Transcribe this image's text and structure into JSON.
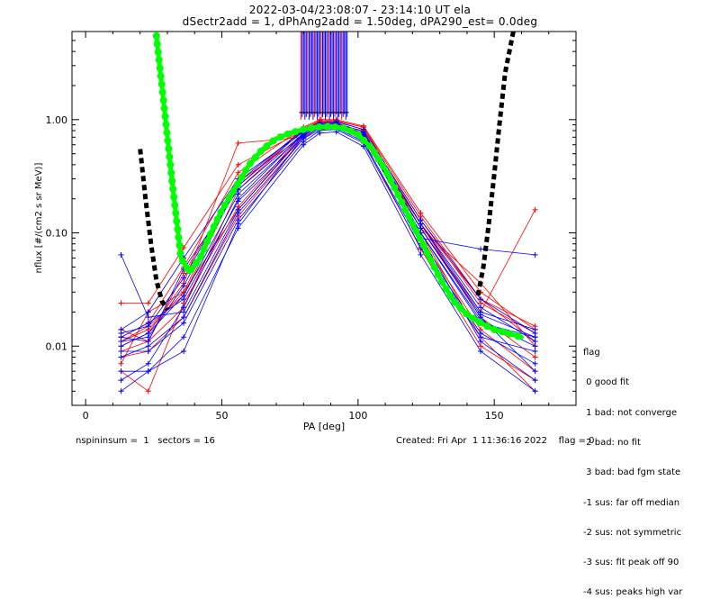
{
  "header": {
    "title": "2022-03-04/23:08:07 - 23:14:10 UT ela",
    "subtitle": "dSectr2add = 1, dPhAng2add = 1.50deg, dPA290_est=    0.0deg"
  },
  "footer": {
    "left": "nspininsum =  1   sectors = 16",
    "right": "Created: Fri Apr  1 11:36:16 2022    flag = 0"
  },
  "legend": {
    "title": "flag",
    "items": [
      " 0 good fit",
      " 1 bad: not converge",
      " 2 bad: no fit",
      " 3 bad: bad fgm state",
      "-1 sus: far off median",
      "-2 sus: not symmetric",
      "-3 sus: fit peak off 90",
      "-4 sus: peaks high var"
    ]
  },
  "colors": {
    "red_series": "#ff0000",
    "blue_series": "#0000ff",
    "green_fit": "#00ff00",
    "black_fit": "#000000"
  },
  "chart_data": {
    "type": "line",
    "xlabel": "PA [deg]",
    "ylabel": "nflux [#/(cm2 s sr MeV)]",
    "xlim": [
      -5,
      180
    ],
    "ylim": [
      0.003,
      6
    ],
    "yscale": "log",
    "xticks": [
      0,
      50,
      100,
      150
    ],
    "yticks": [
      0.01,
      0.1,
      1.0
    ],
    "yticklabels": [
      "0.01",
      "0.10",
      "1.00"
    ],
    "grid": false,
    "series": [
      {
        "color": "red",
        "marker": "+",
        "x": [
          13,
          23,
          36,
          56,
          80,
          86,
          92,
          102,
          123,
          145,
          165
        ],
        "y": [
          0.011,
          0.015,
          0.028,
          0.28,
          0.72,
          0.88,
          0.9,
          0.7,
          0.12,
          0.026,
          0.011
        ]
      },
      {
        "color": "red",
        "marker": "+",
        "x": [
          13,
          23,
          36,
          56,
          80,
          86,
          92,
          102,
          123,
          145,
          165
        ],
        "y": [
          0.009,
          0.011,
          0.022,
          0.24,
          0.82,
          0.95,
          0.97,
          0.86,
          0.12,
          0.018,
          0.008
        ]
      },
      {
        "color": "red",
        "marker": "+",
        "x": [
          13,
          23,
          36,
          56,
          80,
          86,
          92,
          102,
          123,
          145,
          165
        ],
        "y": [
          0.024,
          0.024,
          0.074,
          0.4,
          0.8,
          0.98,
          0.98,
          0.86,
          0.14,
          0.026,
          0.015
        ]
      },
      {
        "color": "red",
        "marker": "+",
        "x": [
          13,
          23,
          36,
          56,
          80,
          86,
          92,
          102,
          123,
          145,
          165
        ],
        "y": [
          0.007,
          0.02,
          0.03,
          0.16,
          0.72,
          0.9,
          0.94,
          0.72,
          0.088,
          0.014,
          0.006
        ]
      },
      {
        "color": "red",
        "marker": "+",
        "x": [
          13,
          23,
          36,
          56,
          80,
          86,
          92,
          102,
          123,
          145,
          165
        ],
        "y": [
          0.014,
          0.011,
          0.044,
          0.26,
          0.84,
          0.98,
          0.96,
          0.82,
          0.13,
          0.024,
          0.013
        ]
      },
      {
        "color": "red",
        "marker": "+",
        "x": [
          13,
          23,
          36,
          56,
          80,
          86,
          92,
          102,
          123,
          145,
          165
        ],
        "y": [
          0.008,
          0.009,
          0.018,
          0.14,
          0.68,
          0.86,
          0.88,
          0.66,
          0.072,
          0.01,
          0.005
        ]
      },
      {
        "color": "red",
        "marker": "+",
        "x": [
          13,
          23,
          36,
          56,
          80,
          86,
          92,
          102,
          123,
          145,
          165
        ],
        "y": [
          0.012,
          0.016,
          0.05,
          0.34,
          0.86,
          1.0,
          1.0,
          0.88,
          0.15,
          0.03,
          0.014
        ]
      },
      {
        "color": "red",
        "marker": "+",
        "x": [
          13,
          23,
          36,
          56,
          80,
          86,
          92,
          102,
          123,
          145,
          165
        ],
        "y": [
          0.006,
          0.004,
          0.024,
          0.17,
          0.76,
          0.92,
          0.9,
          0.76,
          0.1,
          0.012,
          0.004
        ]
      },
      {
        "color": "red",
        "marker": "+",
        "x": [
          13,
          23,
          36,
          56,
          80,
          86,
          92,
          102,
          123,
          145,
          165
        ],
        "y": [
          0.01,
          0.013,
          0.036,
          0.62,
          0.7,
          0.96,
          0.9,
          0.8,
          0.11,
          0.036,
          0.01
        ]
      },
      {
        "color": "red",
        "marker": "+",
        "x": [
          13,
          23,
          36,
          56,
          80,
          86,
          92,
          102,
          123,
          145,
          165
        ],
        "y": [
          0.011,
          0.014,
          0.03,
          0.3,
          0.78,
          0.9,
          0.92,
          0.7,
          0.11,
          0.02,
          0.16
        ]
      },
      {
        "color": "blue",
        "marker": "+",
        "x": [
          13,
          23,
          36,
          56,
          80,
          86,
          92,
          102,
          123,
          145,
          165
        ],
        "y": [
          0.012,
          0.016,
          0.026,
          0.19,
          0.7,
          0.85,
          0.86,
          0.68,
          0.1,
          0.016,
          0.012
        ]
      },
      {
        "color": "blue",
        "marker": "+",
        "x": [
          13,
          23,
          36,
          56,
          80,
          86,
          92,
          102,
          123,
          145,
          165
        ],
        "y": [
          0.064,
          0.018,
          0.02,
          0.16,
          0.74,
          0.86,
          0.88,
          0.7,
          0.09,
          0.072,
          0.064
        ]
      },
      {
        "color": "blue",
        "marker": "+",
        "x": [
          13,
          23,
          36,
          56,
          80,
          86,
          92,
          102,
          123,
          145,
          165
        ],
        "y": [
          0.009,
          0.009,
          0.016,
          0.13,
          0.64,
          0.8,
          0.82,
          0.62,
          0.074,
          0.012,
          0.009
        ]
      },
      {
        "color": "blue",
        "marker": "+",
        "x": [
          13,
          23,
          36,
          56,
          80,
          86,
          92,
          102,
          123,
          145,
          165
        ],
        "y": [
          0.005,
          0.007,
          0.022,
          0.2,
          0.76,
          0.9,
          0.9,
          0.74,
          0.11,
          0.018,
          0.006
        ]
      },
      {
        "color": "blue",
        "marker": "+",
        "x": [
          13,
          23,
          36,
          56,
          80,
          86,
          92,
          102,
          123,
          145,
          165
        ],
        "y": [
          0.011,
          0.012,
          0.034,
          0.26,
          0.8,
          0.92,
          0.94,
          0.78,
          0.12,
          0.022,
          0.011
        ]
      },
      {
        "color": "blue",
        "marker": "+",
        "x": [
          13,
          23,
          36,
          56,
          80,
          86,
          92,
          102,
          123,
          145,
          165
        ],
        "y": [
          0.004,
          0.006,
          0.012,
          0.11,
          0.6,
          0.76,
          0.78,
          0.58,
          0.064,
          0.009,
          0.004
        ]
      },
      {
        "color": "blue",
        "marker": "+",
        "x": [
          13,
          23,
          36,
          56,
          80,
          86,
          92,
          102,
          123,
          145,
          165
        ],
        "y": [
          0.013,
          0.015,
          0.04,
          0.28,
          0.82,
          0.94,
          0.96,
          0.82,
          0.13,
          0.026,
          0.013
        ]
      },
      {
        "color": "blue",
        "marker": "+",
        "x": [
          13,
          23,
          36,
          56,
          80,
          86,
          92,
          102,
          123,
          145,
          165
        ],
        "y": [
          0.008,
          0.01,
          0.018,
          0.15,
          0.68,
          0.82,
          0.84,
          0.64,
          0.08,
          0.013,
          0.007
        ]
      },
      {
        "color": "blue",
        "marker": "+",
        "x": [
          13,
          23,
          36,
          56,
          80,
          86,
          92,
          102,
          123,
          145,
          165
        ],
        "y": [
          0.014,
          0.02,
          0.06,
          0.3,
          0.78,
          0.9,
          0.92,
          0.76,
          0.12,
          0.02,
          0.014
        ]
      },
      {
        "color": "blue",
        "marker": "+",
        "x": [
          13,
          23,
          36,
          56,
          80,
          86,
          92,
          102,
          123,
          145,
          165
        ],
        "y": [
          0.006,
          0.006,
          0.009,
          0.12,
          0.72,
          0.88,
          0.86,
          0.7,
          0.094,
          0.011,
          0.005
        ]
      },
      {
        "color": "blue",
        "marker": "+",
        "x": [
          13,
          23,
          36,
          56,
          80,
          86,
          92,
          102,
          123,
          145,
          165
        ],
        "y": [
          0.01,
          0.013,
          0.028,
          0.22,
          0.74,
          0.86,
          0.88,
          0.72,
          0.1,
          0.017,
          0.01
        ]
      },
      {
        "color": "blue",
        "marker": "+",
        "x": [
          13,
          23,
          36,
          56,
          80,
          86,
          92,
          102,
          123,
          145,
          165
        ],
        "y": [
          0.012,
          0.011,
          0.048,
          0.24,
          0.76,
          0.88,
          0.9,
          0.72,
          0.11,
          0.019,
          0.012
        ]
      }
    ],
    "fit_green": {
      "x": [
        26,
        29,
        32,
        35,
        38,
        42,
        46,
        50,
        55,
        60,
        65,
        70,
        75,
        80,
        85,
        90,
        95,
        100,
        105,
        110,
        115,
        120,
        125,
        130,
        135,
        140,
        145,
        150,
        155,
        160
      ],
      "y": [
        5.5,
        1.2,
        0.25,
        0.06,
        0.045,
        0.06,
        0.1,
        0.16,
        0.25,
        0.4,
        0.55,
        0.68,
        0.76,
        0.82,
        0.86,
        0.87,
        0.84,
        0.74,
        0.56,
        0.36,
        0.21,
        0.12,
        0.07,
        0.04,
        0.025,
        0.019,
        0.016,
        0.014,
        0.013,
        0.012
      ]
    },
    "fit_black": {
      "x": [
        20,
        22,
        24,
        26,
        28,
        30,
        144,
        146,
        148,
        150,
        152,
        154,
        157
      ],
      "y": [
        0.55,
        0.2,
        0.08,
        0.038,
        0.025,
        0.021,
        0.028,
        0.05,
        0.12,
        0.33,
        0.95,
        2.6,
        6
      ]
    },
    "spike_cluster": {
      "x_range": [
        79,
        96
      ],
      "y_from": 1.0,
      "y_to": 6
    }
  }
}
